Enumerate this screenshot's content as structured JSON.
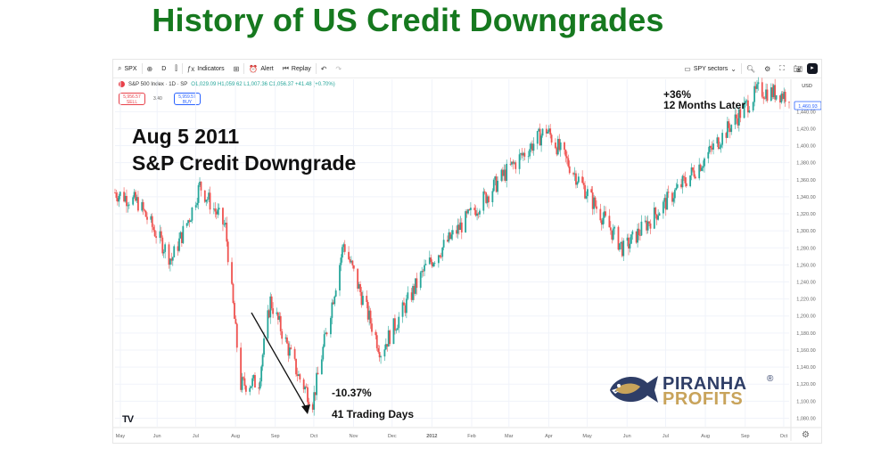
{
  "page": {
    "headline": "History of US Credit Downgrades"
  },
  "toolbar": {
    "symbol": "SPX",
    "interval": "D",
    "indicators_label": "Indicators",
    "alert_label": "Alert",
    "replay_label": "Replay",
    "watchlist_label": "SPY sectors"
  },
  "legend": {
    "title": "S&P 500 Index · 1D · SP",
    "ohlc": "O1,029.09 H1,059.62 L1,007.36 C1,056.37 +41.48 (+0.70%)",
    "sell_price": "5,956.57",
    "sell_label": "SELL",
    "spread": "3.40",
    "buy_price": "5,959.57",
    "buy_label": "BUY",
    "currency": "USD",
    "last_price": "1,460.93"
  },
  "annotations": {
    "event_date": "Aug 5 2011",
    "event_name": "S&P Credit Downgrade",
    "drawdown": "-10.37%",
    "duration": "41 Trading Days",
    "gain": "+36%",
    "gain_period": "12 Months Later"
  },
  "branding": {
    "tv_logo": "TV",
    "brand_line1": "PIRANHA",
    "brand_line2": "PROFITS",
    "brand_mark": "®"
  },
  "colors": {
    "up": "#26a69a",
    "down": "#ef5350",
    "headline": "#16791f",
    "grid": "#f0f3fa"
  },
  "chart_data": {
    "type": "candlestick",
    "title": "S&P 500 Index · 1D · SP",
    "y_axis_ticks": [
      1080,
      1100,
      1120,
      1140,
      1160,
      1180,
      1200,
      1220,
      1240,
      1260,
      1280,
      1300,
      1320,
      1340,
      1360,
      1380,
      1400,
      1420,
      1440
    ],
    "ylim": [
      1070,
      1478
    ],
    "x_axis_labels": [
      "May",
      "Jun",
      "Jul",
      "Aug",
      "Sep",
      "Oct",
      "Nov",
      "Dec",
      "2012",
      "Feb",
      "Mar",
      "Apr",
      "May",
      "Jun",
      "Jul",
      "Aug",
      "Sep",
      "Oct"
    ],
    "series_close_approx": [
      {
        "date": "2011-05-02",
        "close": 1345
      },
      {
        "date": "2011-05-20",
        "close": 1333
      },
      {
        "date": "2011-06-15",
        "close": 1266
      },
      {
        "date": "2011-06-30",
        "close": 1320
      },
      {
        "date": "2011-07-07",
        "close": 1353
      },
      {
        "date": "2011-07-27",
        "close": 1304
      },
      {
        "date": "2011-08-08",
        "close": 1119
      },
      {
        "date": "2011-08-22",
        "close": 1123
      },
      {
        "date": "2011-08-31",
        "close": 1218
      },
      {
        "date": "2011-09-22",
        "close": 1129
      },
      {
        "date": "2011-10-03",
        "close": 1099
      },
      {
        "date": "2011-10-27",
        "close": 1285
      },
      {
        "date": "2011-11-25",
        "close": 1158
      },
      {
        "date": "2011-12-30",
        "close": 1257
      },
      {
        "date": "2012-02-29",
        "close": 1366
      },
      {
        "date": "2012-04-02",
        "close": 1419
      },
      {
        "date": "2012-06-01",
        "close": 1278
      },
      {
        "date": "2012-07-31",
        "close": 1379
      },
      {
        "date": "2012-09-14",
        "close": 1465
      },
      {
        "date": "2012-10-05",
        "close": 1460
      }
    ]
  }
}
